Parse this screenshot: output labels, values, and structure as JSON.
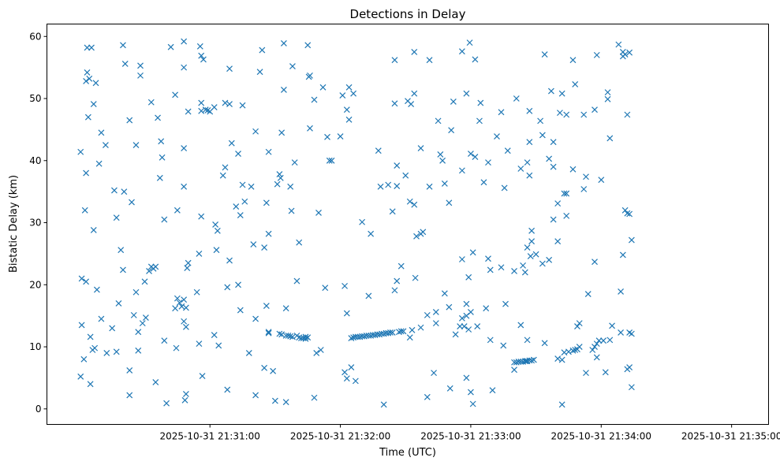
{
  "chart_data": {
    "type": "scatter",
    "title": "Detections in Delay",
    "xlabel": "Time (UTC)",
    "ylabel": "Bistatic Delay (km)",
    "x_unit": "seconds since 2025-10-31 21:30:00",
    "xlim": [
      -15,
      317
    ],
    "ylim": [
      -2.5,
      62
    ],
    "xticks": [
      {
        "value": 60,
        "label": "2025-10-31 21:31:00"
      },
      {
        "value": 120,
        "label": "2025-10-31 21:32:00"
      },
      {
        "value": 180,
        "label": "2025-10-31 21:33:00"
      },
      {
        "value": 240,
        "label": "2025-10-31 21:34:00"
      },
      {
        "value": 300,
        "label": "2025-10-31 21:35:00"
      }
    ],
    "yticks": [
      {
        "value": 0,
        "label": "0"
      },
      {
        "value": 10,
        "label": "10"
      },
      {
        "value": 20,
        "label": "20"
      },
      {
        "value": 30,
        "label": "30"
      },
      {
        "value": 40,
        "label": "40"
      },
      {
        "value": 50,
        "label": "50"
      },
      {
        "value": 60,
        "label": "60"
      }
    ],
    "grid": false,
    "marker": "x",
    "color": "#1f77b4",
    "points": [
      [
        0.5,
        41.4
      ],
      [
        0.5,
        5.2
      ],
      [
        1,
        13.5
      ],
      [
        1,
        21
      ],
      [
        2,
        8
      ],
      [
        2.5,
        32
      ],
      [
        3,
        38
      ],
      [
        3,
        20.5
      ],
      [
        3,
        52.8
      ],
      [
        3.5,
        54.2
      ],
      [
        3.5,
        58.2
      ],
      [
        4,
        47
      ],
      [
        4.5,
        53.2
      ],
      [
        5,
        11.6
      ],
      [
        5,
        4
      ],
      [
        5.5,
        58.2
      ],
      [
        6,
        9.5
      ],
      [
        6.5,
        49.1
      ],
      [
        6.5,
        28.8
      ],
      [
        7,
        9.8
      ],
      [
        7.5,
        52.5
      ],
      [
        8,
        19.2
      ],
      [
        9,
        39.5
      ],
      [
        10,
        14.5
      ],
      [
        10,
        44.5
      ],
      [
        12,
        42.5
      ],
      [
        12.5,
        9
      ],
      [
        15,
        13
      ],
      [
        16,
        35.2
      ],
      [
        17,
        9.2
      ],
      [
        17,
        30.8
      ],
      [
        18,
        17
      ],
      [
        19,
        25.6
      ],
      [
        20,
        58.6
      ],
      [
        20,
        22.4
      ],
      [
        20.5,
        35
      ],
      [
        21,
        55.6
      ],
      [
        23,
        46.5
      ],
      [
        23,
        6.2
      ],
      [
        23,
        2.2
      ],
      [
        24,
        33.3
      ],
      [
        25,
        15.1
      ],
      [
        26,
        42.5
      ],
      [
        26,
        18.8
      ],
      [
        27,
        12.4
      ],
      [
        27,
        9.4
      ],
      [
        28,
        55.3
      ],
      [
        28,
        53.7
      ],
      [
        29,
        13.8
      ],
      [
        30,
        20.5
      ],
      [
        30.5,
        14.7
      ],
      [
        32,
        22.2
      ],
      [
        33,
        22.9
      ],
      [
        33,
        49.4
      ],
      [
        34,
        22.6
      ],
      [
        35,
        4.3
      ],
      [
        35,
        22.9
      ],
      [
        36,
        46.9
      ],
      [
        37,
        37.2
      ],
      [
        37.5,
        43.1
      ],
      [
        38,
        40.5
      ],
      [
        39,
        30.5
      ],
      [
        39,
        11
      ],
      [
        40,
        0.9
      ],
      [
        42,
        58.3
      ],
      [
        44,
        50.6
      ],
      [
        44,
        16.2
      ],
      [
        44.5,
        9.8
      ],
      [
        45,
        32
      ],
      [
        45,
        17.8
      ],
      [
        46,
        17.1
      ],
      [
        47,
        16.5
      ],
      [
        48,
        59.2
      ],
      [
        48,
        55
      ],
      [
        48,
        42
      ],
      [
        48,
        35.8
      ],
      [
        48,
        17.6
      ],
      [
        48,
        14.1
      ],
      [
        48.5,
        1.4
      ],
      [
        49,
        16.3
      ],
      [
        49,
        13.2
      ],
      [
        49,
        2.4
      ],
      [
        49.5,
        22.7
      ],
      [
        50,
        23.5
      ],
      [
        50,
        47.9
      ],
      [
        54,
        18.8
      ],
      [
        55,
        10.5
      ],
      [
        55,
        25
      ],
      [
        55.5,
        58.4
      ],
      [
        56,
        31
      ],
      [
        56,
        48
      ],
      [
        56,
        49.3
      ],
      [
        56,
        56.9
      ],
      [
        56.5,
        5.3
      ],
      [
        57,
        56.3
      ],
      [
        58,
        48.2
      ],
      [
        59,
        48.1
      ],
      [
        60,
        47.9
      ],
      [
        62,
        48.6
      ],
      [
        62,
        11.9
      ],
      [
        62.5,
        29.7
      ],
      [
        63,
        25.6
      ],
      [
        63.5,
        28.7
      ],
      [
        64,
        10.2
      ],
      [
        66,
        37.6
      ],
      [
        67,
        49.3
      ],
      [
        67,
        38.9
      ],
      [
        68,
        3.1
      ],
      [
        68,
        19.6
      ],
      [
        69,
        23.9
      ],
      [
        69,
        54.8
      ],
      [
        69,
        49.1
      ],
      [
        70,
        42.8
      ],
      [
        72,
        32.6
      ],
      [
        73,
        41.1
      ],
      [
        73,
        20
      ],
      [
        74,
        31.2
      ],
      [
        74,
        15.9
      ],
      [
        75,
        36.1
      ],
      [
        75,
        48.9
      ],
      [
        76,
        33.4
      ],
      [
        78,
        9
      ],
      [
        79,
        35.8
      ],
      [
        80,
        26.5
      ],
      [
        81,
        44.7
      ],
      [
        81,
        14.5
      ],
      [
        81,
        2.2
      ],
      [
        83,
        54.3
      ],
      [
        84,
        57.8
      ],
      [
        85,
        6.6
      ],
      [
        85,
        26
      ],
      [
        86,
        33.2
      ],
      [
        86,
        16.6
      ],
      [
        87,
        28.2
      ],
      [
        87,
        41.4
      ],
      [
        87,
        12.4
      ],
      [
        87,
        12.2
      ],
      [
        89,
        6.1
      ],
      [
        90,
        1.3
      ],
      [
        91,
        36.2
      ],
      [
        92,
        37.8
      ],
      [
        92,
        12.1
      ],
      [
        92.5,
        37.2
      ],
      [
        93,
        12
      ],
      [
        93,
        44.5
      ],
      [
        94,
        58.9
      ],
      [
        94,
        51.4
      ],
      [
        95,
        16.2
      ],
      [
        95,
        11.8
      ],
      [
        95,
        1.1
      ],
      [
        96,
        11.8
      ],
      [
        97,
        35.8
      ],
      [
        97,
        11.7
      ],
      [
        97.5,
        31.9
      ],
      [
        98,
        55.2
      ],
      [
        98,
        11.6
      ],
      [
        99,
        39.7
      ],
      [
        100,
        11.8
      ],
      [
        100,
        20.6
      ],
      [
        101,
        11.5
      ],
      [
        101,
        26.8
      ],
      [
        102,
        11.4
      ],
      [
        103,
        11.4
      ],
      [
        104,
        11.3
      ],
      [
        104,
        11.6
      ],
      [
        105,
        11.5
      ],
      [
        105,
        58.6
      ],
      [
        105.5,
        53.5
      ],
      [
        106,
        53.7
      ],
      [
        106,
        45.2
      ],
      [
        108,
        1.8
      ],
      [
        108,
        49.8
      ],
      [
        109,
        9
      ],
      [
        110,
        31.6
      ],
      [
        111,
        9.5
      ],
      [
        112,
        51.8
      ],
      [
        113,
        19.5
      ],
      [
        114,
        43.8
      ],
      [
        115,
        40
      ],
      [
        116,
        40
      ],
      [
        120,
        43.9
      ],
      [
        121,
        50.5
      ],
      [
        122,
        5.9
      ],
      [
        122,
        19.8
      ],
      [
        123,
        15.4
      ],
      [
        123,
        4.9
      ],
      [
        123,
        48.2
      ],
      [
        124,
        46.6
      ],
      [
        124,
        51.8
      ],
      [
        125,
        6.7
      ],
      [
        125,
        11.4
      ],
      [
        126,
        11.5
      ],
      [
        126,
        50.8
      ],
      [
        127,
        4.5
      ],
      [
        127,
        11.6
      ],
      [
        128,
        11.6
      ],
      [
        129,
        11.6
      ],
      [
        130,
        11.7
      ],
      [
        130,
        30.1
      ],
      [
        131,
        11.7
      ],
      [
        132,
        11.8
      ],
      [
        133,
        11.8
      ],
      [
        133,
        18.2
      ],
      [
        134,
        28.2
      ],
      [
        134,
        11.8
      ],
      [
        135,
        11.9
      ],
      [
        136,
        11.9
      ],
      [
        137,
        12
      ],
      [
        137.5,
        41.6
      ],
      [
        138,
        12
      ],
      [
        138.5,
        35.8
      ],
      [
        139,
        12.1
      ],
      [
        140,
        0.7
      ],
      [
        140,
        12.1
      ],
      [
        141,
        12.2
      ],
      [
        142,
        12.2
      ],
      [
        142,
        36.1
      ],
      [
        143,
        12.3
      ],
      [
        144,
        12.3
      ],
      [
        144,
        31.8
      ],
      [
        145,
        19.1
      ],
      [
        145,
        49.2
      ],
      [
        145,
        56.2
      ],
      [
        146,
        39.2
      ],
      [
        146,
        35.9
      ],
      [
        146,
        20.6
      ],
      [
        147,
        12.4
      ],
      [
        148,
        23
      ],
      [
        148,
        12.5
      ],
      [
        149,
        12.5
      ],
      [
        150,
        37.6
      ],
      [
        151,
        49.6
      ],
      [
        152,
        11.5
      ],
      [
        152,
        33.4
      ],
      [
        152.5,
        49.1
      ],
      [
        153,
        12.7
      ],
      [
        154,
        57.5
      ],
      [
        154,
        50.8
      ],
      [
        154,
        32.9
      ],
      [
        154.5,
        21.1
      ],
      [
        155,
        27.8
      ],
      [
        157,
        13.1
      ],
      [
        157,
        42
      ],
      [
        157,
        28.2
      ],
      [
        158,
        28.5
      ],
      [
        160,
        15.1
      ],
      [
        160,
        1.9
      ],
      [
        161,
        56.2
      ],
      [
        161,
        35.8
      ],
      [
        163,
        5.8
      ],
      [
        164,
        13.8
      ],
      [
        164,
        15.6
      ],
      [
        165,
        46.4
      ],
      [
        166,
        41
      ],
      [
        167,
        40
      ],
      [
        168,
        18.6
      ],
      [
        168,
        36.3
      ],
      [
        170,
        33.2
      ],
      [
        170,
        16.4
      ],
      [
        170.5,
        3.3
      ],
      [
        171,
        44.9
      ],
      [
        172,
        49.5
      ],
      [
        173,
        12
      ],
      [
        175,
        13.3
      ],
      [
        176,
        38.4
      ],
      [
        176,
        57.6
      ],
      [
        176,
        14.6
      ],
      [
        176,
        24.1
      ],
      [
        177,
        13.3
      ],
      [
        178,
        50.8
      ],
      [
        178,
        15
      ],
      [
        178,
        16.9
      ],
      [
        178,
        5
      ],
      [
        179,
        12.8
      ],
      [
        179,
        21.2
      ],
      [
        179.5,
        59
      ],
      [
        180,
        2.7
      ],
      [
        180,
        15.6
      ],
      [
        180,
        41.1
      ],
      [
        181,
        0.8
      ],
      [
        181,
        25.2
      ],
      [
        182,
        56.3
      ],
      [
        182,
        40.6
      ],
      [
        183,
        13.3
      ],
      [
        184,
        46.4
      ],
      [
        184.5,
        49.3
      ],
      [
        186,
        36.5
      ],
      [
        187,
        16.2
      ],
      [
        188,
        24.2
      ],
      [
        188,
        39.7
      ],
      [
        189,
        11.1
      ],
      [
        189,
        22.4
      ],
      [
        190,
        3
      ],
      [
        192,
        43.9
      ],
      [
        194,
        47.8
      ],
      [
        194,
        22.8
      ],
      [
        195,
        10.2
      ],
      [
        195.5,
        35.6
      ],
      [
        196,
        16.9
      ],
      [
        197,
        41.6
      ],
      [
        200,
        7.5
      ],
      [
        200,
        22.2
      ],
      [
        200,
        6.3
      ],
      [
        201,
        7.5
      ],
      [
        201,
        50
      ],
      [
        202,
        7.6
      ],
      [
        203,
        7.6
      ],
      [
        203,
        38.7
      ],
      [
        203,
        13.5
      ],
      [
        204,
        7.6
      ],
      [
        204,
        23.1
      ],
      [
        205,
        7.7
      ],
      [
        205,
        22
      ],
      [
        205.5,
        7.7
      ],
      [
        206,
        26
      ],
      [
        206,
        39.7
      ],
      [
        206,
        11.1
      ],
      [
        206,
        7.7
      ],
      [
        207,
        48
      ],
      [
        207,
        37.6
      ],
      [
        207,
        43
      ],
      [
        207,
        7.8
      ],
      [
        207.5,
        24.6
      ],
      [
        208,
        7.8
      ],
      [
        208,
        28.7
      ],
      [
        208,
        27
      ],
      [
        209,
        7.9
      ],
      [
        210,
        24.9
      ],
      [
        212,
        46.4
      ],
      [
        213,
        44.1
      ],
      [
        213,
        23.4
      ],
      [
        214,
        10.6
      ],
      [
        214,
        57.1
      ],
      [
        216,
        24
      ],
      [
        216,
        40.3
      ],
      [
        217,
        51.2
      ],
      [
        218,
        39
      ],
      [
        218,
        43
      ],
      [
        218,
        30.5
      ],
      [
        220,
        33.1
      ],
      [
        220,
        8.1
      ],
      [
        220,
        27
      ],
      [
        221,
        47.7
      ],
      [
        222,
        7.9
      ],
      [
        222,
        0.7
      ],
      [
        222,
        50.8
      ],
      [
        223,
        34.7
      ],
      [
        223,
        9.1
      ],
      [
        224,
        34.7
      ],
      [
        224,
        47.4
      ],
      [
        224,
        31.1
      ],
      [
        225,
        9.2
      ],
      [
        227,
        9.4
      ],
      [
        227,
        56.2
      ],
      [
        227,
        38.6
      ],
      [
        228,
        9.5
      ],
      [
        228,
        52.3
      ],
      [
        229,
        13.3
      ],
      [
        229,
        9.6
      ],
      [
        230,
        10
      ],
      [
        230,
        13.8
      ],
      [
        232,
        47.4
      ],
      [
        232,
        35.4
      ],
      [
        233,
        37.4
      ],
      [
        233,
        5.8
      ],
      [
        234,
        18.5
      ],
      [
        236,
        9.5
      ],
      [
        237,
        48.2
      ],
      [
        237,
        23.7
      ],
      [
        237,
        10
      ],
      [
        238,
        10.5
      ],
      [
        238,
        8.3
      ],
      [
        238,
        57
      ],
      [
        239,
        11
      ],
      [
        240,
        36.9
      ],
      [
        241,
        11
      ],
      [
        242,
        5.9
      ],
      [
        243,
        49.9
      ],
      [
        243,
        51
      ],
      [
        244,
        11.1
      ],
      [
        244,
        43.6
      ],
      [
        245,
        13.4
      ],
      [
        248,
        58.7
      ],
      [
        249,
        18.9
      ],
      [
        249,
        12.3
      ],
      [
        250,
        56.8
      ],
      [
        250,
        57.5
      ],
      [
        250,
        24.8
      ],
      [
        251,
        57.1
      ],
      [
        251,
        32
      ],
      [
        252,
        31.5
      ],
      [
        252,
        47.4
      ],
      [
        252,
        6.4
      ],
      [
        253,
        31.4
      ],
      [
        253,
        57.4
      ],
      [
        253,
        12.3
      ],
      [
        253,
        6.7
      ],
      [
        254,
        3.5
      ],
      [
        254,
        12.1
      ],
      [
        254,
        27.2
      ]
    ]
  }
}
